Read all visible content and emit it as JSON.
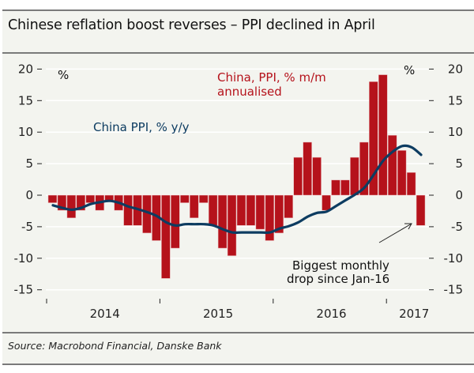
{
  "header": {
    "title": "Chinese reflation boost reverses – PPI declined in April"
  },
  "footer": {
    "source": "Source: Macrobond Financial, Danske Bank"
  },
  "colors": {
    "bars": "#b5121b",
    "line": "#0d3c61",
    "background": "#f3f4ef",
    "grid": "#ffffff"
  },
  "chart_data": {
    "type": "bar",
    "title": "Chinese reflation boost reverses – PPI declined in April",
    "xlabel": "",
    "ylabel": "%",
    "left_unit": "%",
    "right_unit": "%",
    "ylim": [
      -15,
      20
    ],
    "yticks": [
      20,
      15,
      10,
      5,
      0,
      -5,
      -10,
      -15
    ],
    "ytick_labels": [
      "20",
      "15",
      "10",
      "5",
      "0",
      "-5",
      "-10",
      "-15"
    ],
    "grid": true,
    "x_start": "2014-01",
    "x_end": "2017-04",
    "year_labels": [
      "2014",
      "2015",
      "2016",
      "2017"
    ],
    "categories": [
      "2014-01",
      "2014-02",
      "2014-03",
      "2014-04",
      "2014-05",
      "2014-06",
      "2014-07",
      "2014-08",
      "2014-09",
      "2014-10",
      "2014-11",
      "2014-12",
      "2015-01",
      "2015-02",
      "2015-03",
      "2015-04",
      "2015-05",
      "2015-06",
      "2015-07",
      "2015-08",
      "2015-09",
      "2015-10",
      "2015-11",
      "2015-12",
      "2016-01",
      "2016-02",
      "2016-03",
      "2016-04",
      "2016-05",
      "2016-06",
      "2016-07",
      "2016-08",
      "2016-09",
      "2016-10",
      "2016-11",
      "2016-12",
      "2017-01",
      "2017-02",
      "2017-03",
      "2017-04"
    ],
    "series": [
      {
        "name": "China, PPI, % m/m annualised",
        "legend_lines": [
          "China, PPI, % m/m",
          "annualised"
        ],
        "type": "bar",
        "values": [
          -1.2,
          -2.4,
          -3.6,
          -2.4,
          -1.2,
          -2.4,
          -1.0,
          -2.4,
          -4.8,
          -4.8,
          -6.0,
          -7.2,
          -13.2,
          -8.4,
          -1.2,
          -3.6,
          -1.2,
          -4.8,
          -8.4,
          -9.6,
          -4.8,
          -4.8,
          -5.4,
          -7.2,
          -6.0,
          -3.6,
          6.0,
          8.4,
          6.0,
          -2.4,
          2.4,
          2.4,
          6.0,
          8.4,
          18.0,
          19.1,
          9.5,
          7.1,
          3.6,
          -4.8
        ]
      },
      {
        "name": "China PPI, % y/y",
        "type": "line",
        "values": [
          -1.6,
          -2.0,
          -2.3,
          -2.0,
          -1.4,
          -1.1,
          -0.9,
          -1.2,
          -1.8,
          -2.2,
          -2.7,
          -3.3,
          -4.3,
          -4.8,
          -4.6,
          -4.6,
          -4.6,
          -4.8,
          -5.4,
          -5.9,
          -5.9,
          -5.9,
          -5.9,
          -5.9,
          -5.3,
          -4.9,
          -4.3,
          -3.4,
          -2.8,
          -2.6,
          -1.7,
          -0.8,
          0.1,
          1.2,
          3.3,
          5.5,
          6.9,
          7.8,
          7.6,
          6.4
        ]
      }
    ],
    "annotations": [
      {
        "text_lines": [
          "Biggest monthly",
          "drop since Jan-16"
        ],
        "points_to": "2017-04"
      }
    ]
  }
}
